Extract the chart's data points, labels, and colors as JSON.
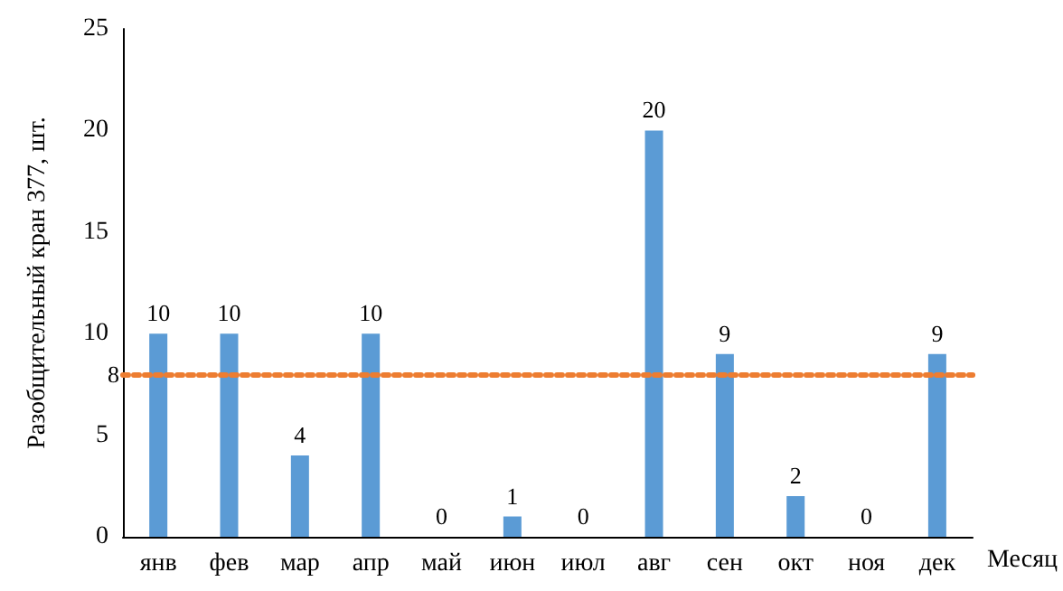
{
  "chart_data": {
    "type": "bar",
    "ylabel": "Разобщительный кран 377, шт.",
    "xlabel": "Месяц",
    "categories": [
      "янв",
      "фев",
      "мар",
      "апр",
      "май",
      "июн",
      "июл",
      "авг",
      "сен",
      "окт",
      "ноя",
      "дек"
    ],
    "values": [
      10,
      10,
      4,
      10,
      0,
      1,
      0,
      20,
      9,
      2,
      0,
      9
    ],
    "color": "#5b9bd5",
    "ylim": [
      0,
      25
    ],
    "yticks": [
      0,
      5,
      10,
      15,
      20,
      25
    ],
    "grid": false,
    "data_labels": true,
    "ref_lines": [
      {
        "axis": "y",
        "value": 8,
        "label": "8",
        "color": "#ed7d31",
        "line_style": "dotted"
      }
    ]
  }
}
